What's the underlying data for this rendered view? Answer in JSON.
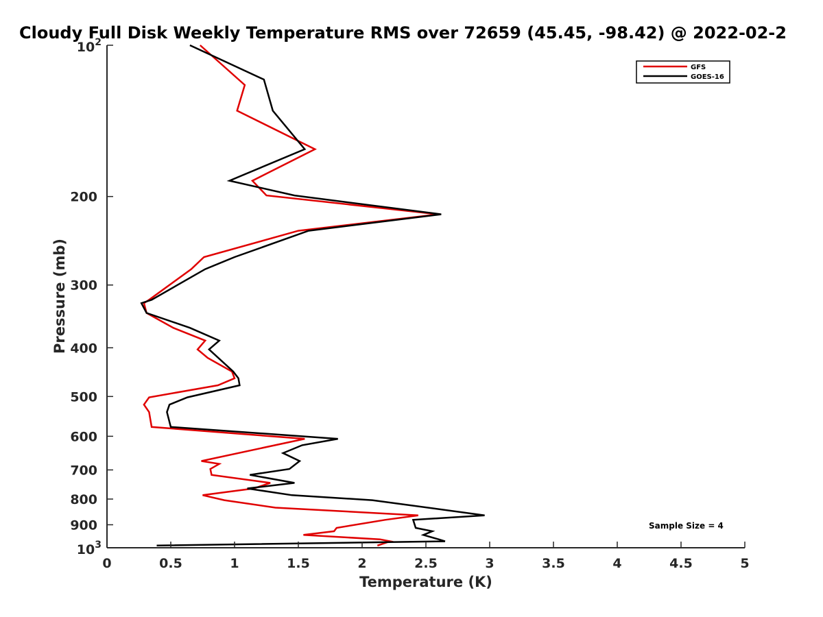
{
  "chart_data": {
    "type": "line",
    "title": "Cloudy Full Disk Weekly Temperature RMS over 72659 (45.45, -98.42) @ 2022-02-2",
    "xlabel": "Temperature (K)",
    "ylabel": "Pressure (mb)",
    "xlim": [
      0,
      5
    ],
    "ylim": [
      100,
      1000
    ],
    "y_scale": "log",
    "y_reversed": true,
    "grid": false,
    "legend_position": "top-right",
    "x_ticks": [
      0,
      0.5,
      1,
      1.5,
      2,
      2.5,
      3,
      3.5,
      4,
      4.5,
      5
    ],
    "x_tick_labels": [
      "0",
      "0.5",
      "1",
      "1.5",
      "2",
      "2.5",
      "3",
      "3.5",
      "4",
      "4.5",
      "5"
    ],
    "y_ticks": [
      100,
      200,
      300,
      400,
      500,
      600,
      700,
      800,
      900,
      1000
    ],
    "y_tick_labels": [
      {
        "base": "10",
        "sup": "2"
      },
      {
        "base": "200",
        "sup": ""
      },
      {
        "base": "300",
        "sup": ""
      },
      {
        "base": "400",
        "sup": ""
      },
      {
        "base": "500",
        "sup": ""
      },
      {
        "base": "600",
        "sup": ""
      },
      {
        "base": "700",
        "sup": ""
      },
      {
        "base": "800",
        "sup": ""
      },
      {
        "base": "900",
        "sup": ""
      },
      {
        "base": "10",
        "sup": "3"
      }
    ],
    "annotation": "Sample Size = 4",
    "series": [
      {
        "name": "GFS",
        "color": "#e00000",
        "points": [
          [
            0.73,
            100
          ],
          [
            1.08,
            120
          ],
          [
            1.02,
            135
          ],
          [
            1.63,
            161
          ],
          [
            1.14,
            186
          ],
          [
            1.25,
            199
          ],
          [
            2.6,
            217
          ],
          [
            1.5,
            234
          ],
          [
            0.76,
            264
          ],
          [
            0.66,
            279
          ],
          [
            0.33,
            321
          ],
          [
            0.29,
            326
          ],
          [
            0.31,
            341
          ],
          [
            0.52,
            365
          ],
          [
            0.77,
            387
          ],
          [
            0.71,
            403
          ],
          [
            0.79,
            419
          ],
          [
            0.98,
            446
          ],
          [
            1.0,
            460
          ],
          [
            0.87,
            475
          ],
          [
            0.33,
            502
          ],
          [
            0.29,
            519
          ],
          [
            0.33,
            537
          ],
          [
            0.35,
            575
          ],
          [
            1.55,
            607
          ],
          [
            0.74,
            672
          ],
          [
            0.88,
            681
          ],
          [
            0.81,
            697
          ],
          [
            0.82,
            716
          ],
          [
            1.28,
            743
          ],
          [
            1.15,
            762
          ],
          [
            0.75,
            786
          ],
          [
            0.92,
            804
          ],
          [
            1.32,
            832
          ],
          [
            2.44,
            862
          ],
          [
            2.18,
            880
          ],
          [
            1.8,
            913
          ],
          [
            1.78,
            927
          ],
          [
            1.54,
            943
          ],
          [
            2.14,
            962
          ],
          [
            2.22,
            971
          ],
          [
            2.12,
            990
          ]
        ]
      },
      {
        "name": "GOES-16",
        "color": "#000000",
        "points": [
          [
            0.65,
            100
          ],
          [
            1.23,
            117
          ],
          [
            1.3,
            135
          ],
          [
            1.55,
            161
          ],
          [
            0.96,
            186
          ],
          [
            1.47,
            199
          ],
          [
            2.62,
            217
          ],
          [
            1.58,
            234
          ],
          [
            1.0,
            264
          ],
          [
            0.77,
            279
          ],
          [
            0.35,
            321
          ],
          [
            0.27,
            326
          ],
          [
            0.31,
            341
          ],
          [
            0.65,
            365
          ],
          [
            0.88,
            387
          ],
          [
            0.8,
            403
          ],
          [
            0.99,
            446
          ],
          [
            1.03,
            460
          ],
          [
            1.04,
            475
          ],
          [
            0.63,
            502
          ],
          [
            0.49,
            519
          ],
          [
            0.47,
            537
          ],
          [
            0.5,
            575
          ],
          [
            1.81,
            607
          ],
          [
            1.53,
            625
          ],
          [
            1.38,
            648
          ],
          [
            1.51,
            672
          ],
          [
            1.43,
            697
          ],
          [
            1.12,
            716
          ],
          [
            1.47,
            743
          ],
          [
            1.1,
            762
          ],
          [
            1.45,
            786
          ],
          [
            2.08,
            804
          ],
          [
            2.96,
            862
          ],
          [
            2.4,
            880
          ],
          [
            2.42,
            913
          ],
          [
            2.55,
            927
          ],
          [
            2.48,
            943
          ],
          [
            2.6,
            962
          ],
          [
            2.65,
            971
          ],
          [
            0.39,
            990
          ]
        ]
      }
    ]
  }
}
